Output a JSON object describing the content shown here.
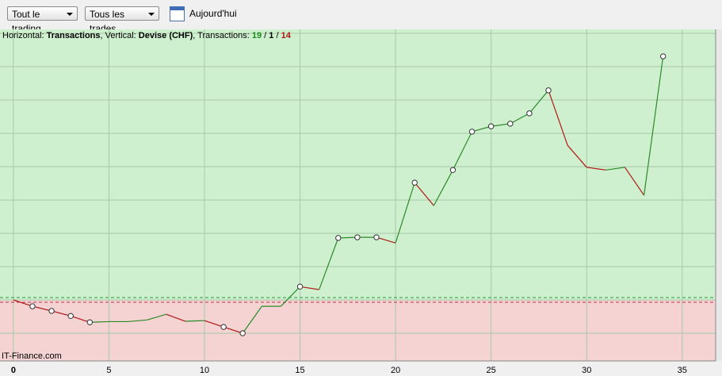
{
  "toolbar": {
    "filter1": "Tout le trading",
    "filter2": "Tous les trades",
    "date": "Aujourd'hui"
  },
  "chart_data": {
    "type": "line",
    "info": {
      "h_label": "Horizontal: ",
      "h_value": "Transactions",
      "v_label": ", Vertical: ",
      "v_value": "Devise (CHF)",
      "t_label": ", Transactions: ",
      "wins": "19",
      "sep1": " / ",
      "even": "1",
      "sep2": " / ",
      "losses": "14"
    },
    "watermark": "IT-Finance.com",
    "x": [
      0,
      1,
      2,
      3,
      4,
      5,
      6,
      7,
      8,
      9,
      10,
      11,
      12,
      13,
      14,
      15,
      16,
      17,
      18,
      19,
      20,
      21,
      22,
      23,
      24,
      25,
      26,
      27,
      28,
      29,
      30,
      31,
      32,
      33,
      34
    ],
    "values": [
      0,
      -0.19,
      -0.33,
      -0.48,
      -0.67,
      -0.65,
      -0.65,
      -0.6,
      -0.43,
      -0.64,
      -0.62,
      -0.81,
      -1.0,
      -0.19,
      -0.19,
      0.4,
      0.31,
      1.86,
      1.88,
      1.88,
      1.71,
      3.52,
      2.83,
      3.9,
      5.05,
      5.21,
      5.29,
      5.6,
      6.29,
      4.64,
      3.98,
      3.9,
      3.98,
      3.14,
      7.31
    ],
    "markers": [
      1,
      2,
      3,
      4,
      11,
      12,
      15,
      17,
      18,
      19,
      21,
      23,
      24,
      25,
      26,
      27,
      28,
      34
    ],
    "up_color": "#2a8a2a",
    "down_color": "#b01818",
    "profit_bg": "#cff0cf",
    "loss_bg": "#f5d3d3",
    "reference_lines": [
      {
        "value": 0.07,
        "color": "#2a9a4a"
      },
      {
        "value": -0.07,
        "color": "#c03040"
      }
    ],
    "xlim": [
      -0.7,
      36.75
    ],
    "xticks": [
      0,
      5,
      10,
      15,
      20,
      25,
      30,
      35
    ],
    "ylim": [
      -1.83,
      8.12
    ],
    "yticks": [
      -1,
      0,
      1,
      2,
      3,
      4,
      5,
      6,
      7,
      8
    ],
    "grid": true
  }
}
